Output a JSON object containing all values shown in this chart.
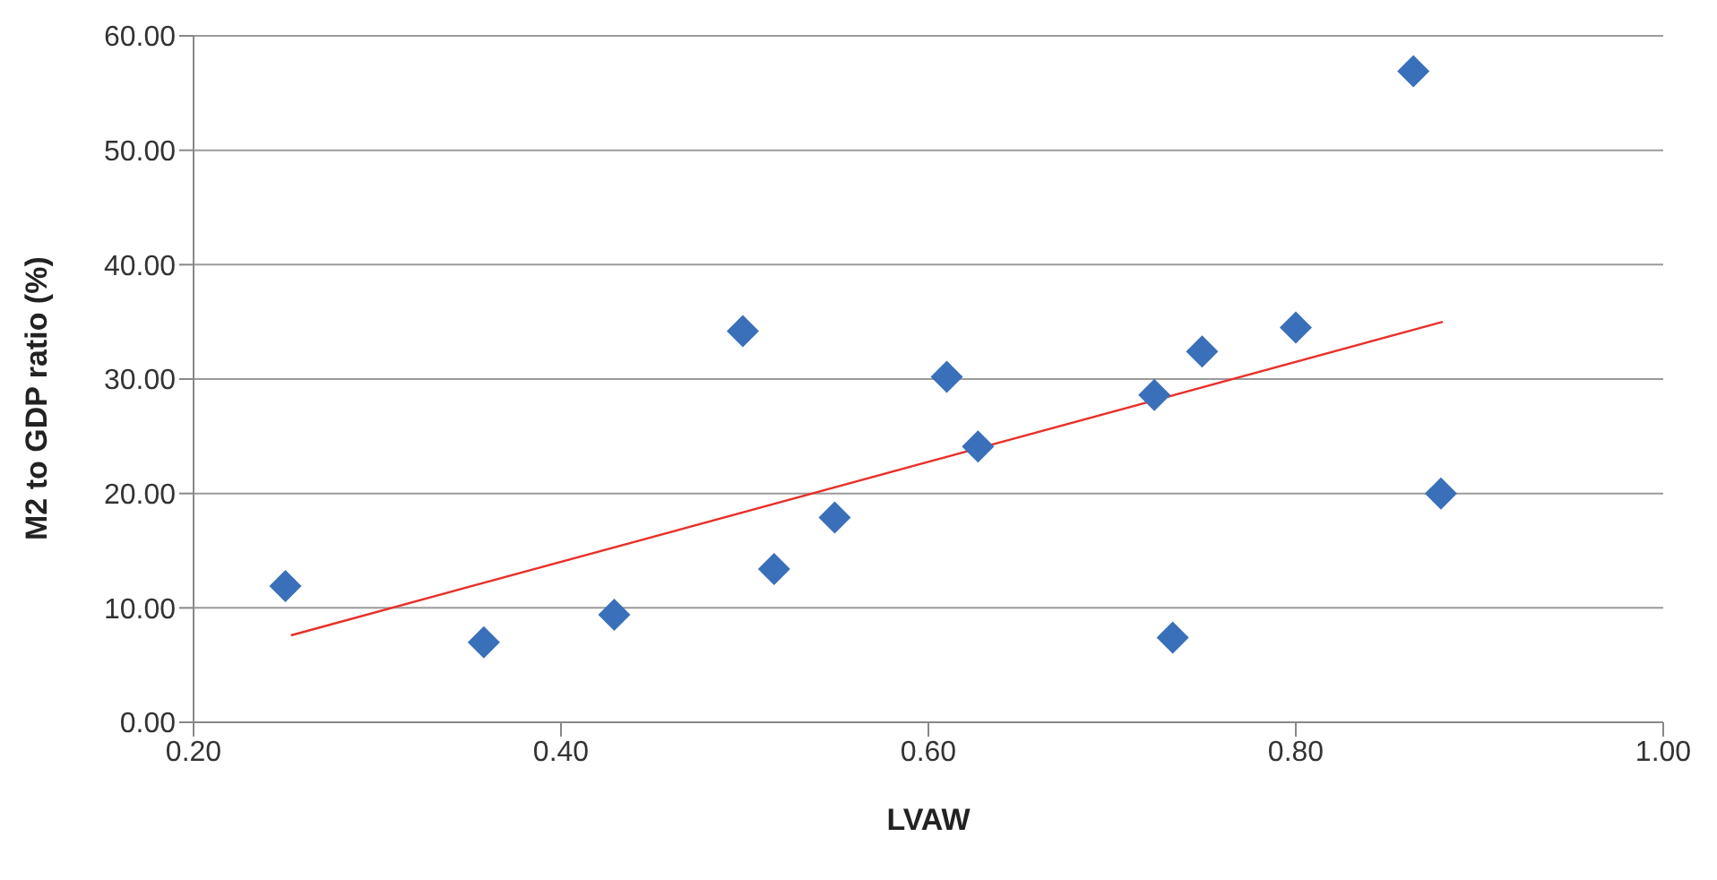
{
  "chart_data": {
    "type": "scatter",
    "xlabel": "LVAW",
    "ylabel": "M2 to GDP ratio (%)",
    "xlim": [
      0.2,
      1.0
    ],
    "xticks": [
      {
        "value": 0.2,
        "label": "0.20"
      },
      {
        "value": 0.4,
        "label": "0.40"
      },
      {
        "value": 0.6,
        "label": "0.60"
      },
      {
        "value": 0.8,
        "label": "0.80"
      },
      {
        "value": 1.0,
        "label": "1.00"
      }
    ],
    "ylim": [
      0,
      60
    ],
    "yticks": [
      {
        "value": 0,
        "label": "0.00"
      },
      {
        "value": 10,
        "label": "10.00"
      },
      {
        "value": 20,
        "label": "20.00"
      },
      {
        "value": 30,
        "label": "30.00"
      },
      {
        "value": 40,
        "label": "40.00"
      },
      {
        "value": 50,
        "label": "50.00"
      },
      {
        "value": 60,
        "label": "60.00"
      }
    ],
    "grid": "y",
    "legend": false,
    "series": [
      {
        "color": "#3a6fba",
        "marker": "diamond",
        "x": [
          0.25,
          0.358,
          0.429,
          0.499,
          0.516,
          0.549,
          0.61,
          0.627,
          0.723,
          0.749,
          0.8,
          0.733,
          0.864,
          0.879
        ],
        "values": [
          11.9,
          7.0,
          9.4,
          34.2,
          13.4,
          17.9,
          30.2,
          24.1,
          28.6,
          32.4,
          34.5,
          7.4,
          56.9,
          20.0
        ]
      },
      {
        "type": "line",
        "color": "#e8302a",
        "marker": "none",
        "x": [
          0.253,
          0.88
        ],
        "values": [
          7.6,
          35.0
        ]
      }
    ]
  }
}
